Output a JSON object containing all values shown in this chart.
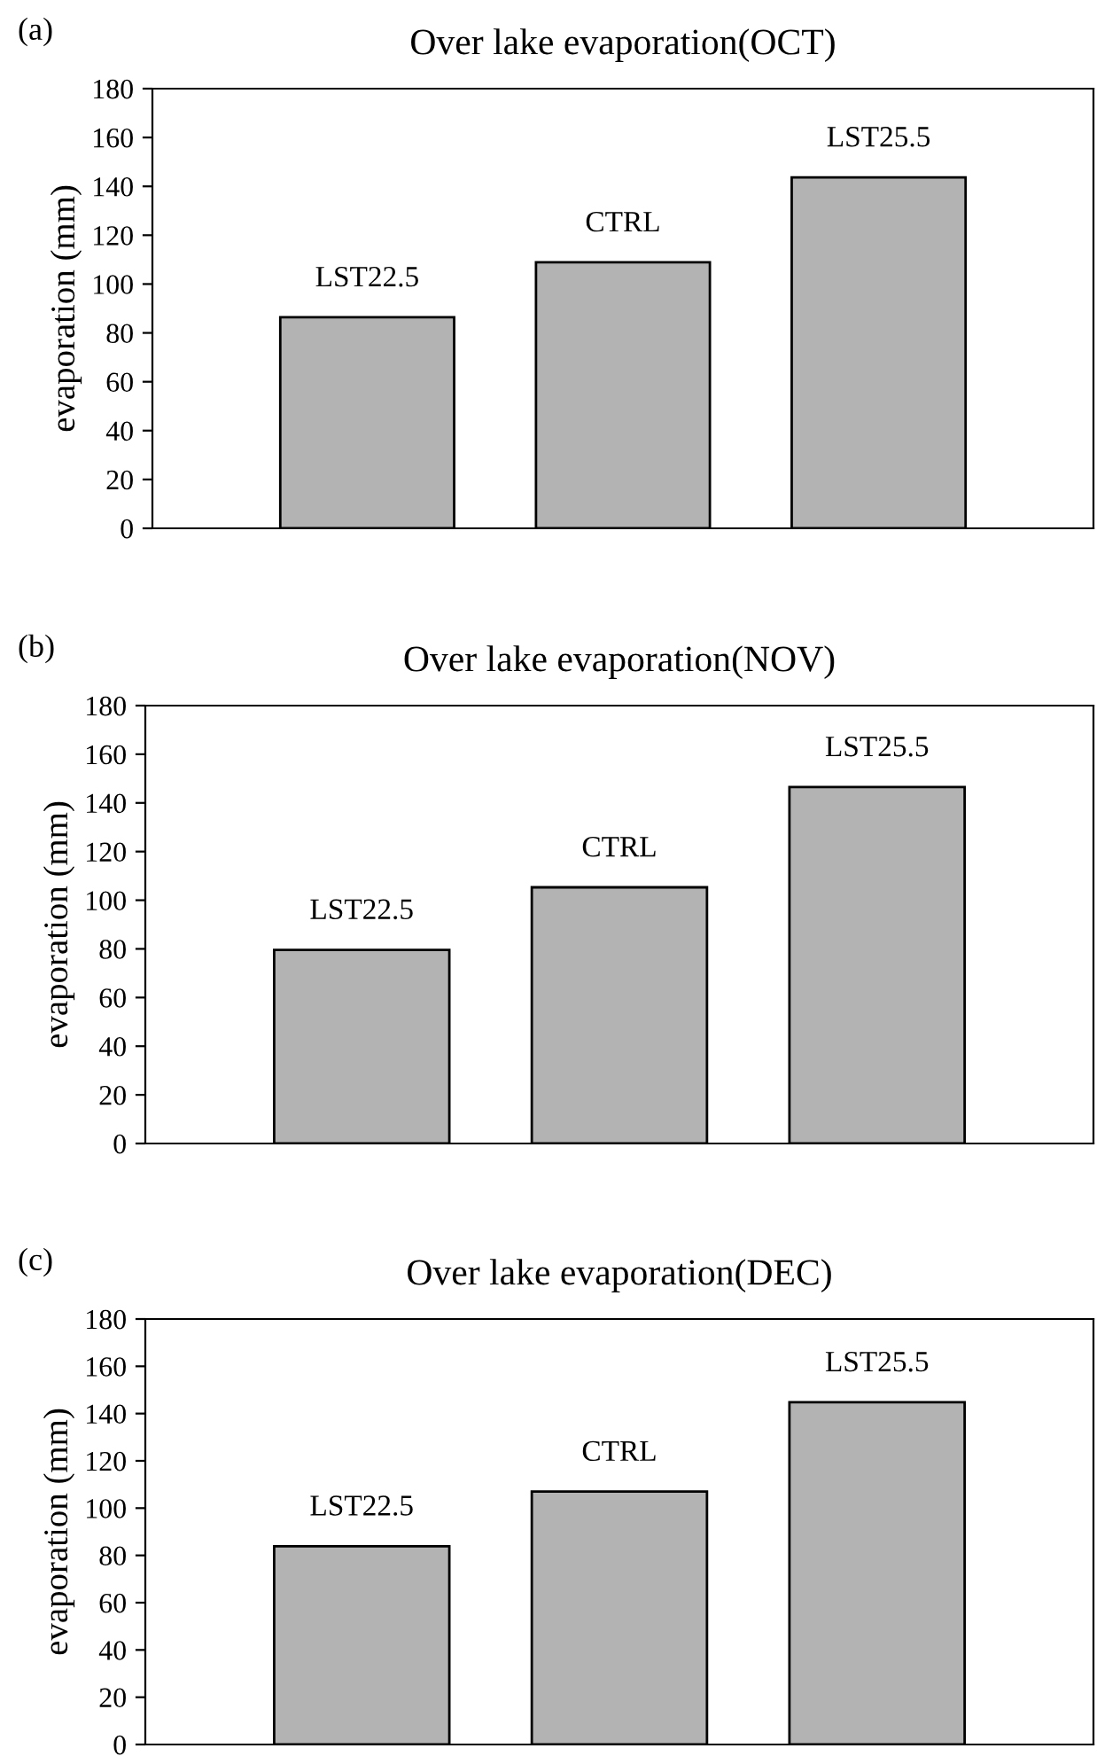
{
  "chart_data": [
    {
      "type": "bar",
      "title": "Over lake evaporation(OCT)",
      "ylabel": "evaporation (mm)",
      "annotations": [
        "(a)"
      ],
      "categories": [
        "LST22.5",
        "CTRL",
        "LST25.5"
      ],
      "values": [
        86.4,
        108.9,
        143.7
      ],
      "color": "#b3b3b3",
      "ylim": [
        0,
        180
      ],
      "yticks": [
        0,
        20,
        40,
        60,
        80,
        100,
        120,
        140,
        160,
        180
      ],
      "grid": false,
      "legend": false
    },
    {
      "type": "bar",
      "title": "Over lake evaporation(NOV)",
      "ylabel": "evaporation (mm)",
      "annotations": [
        "(b)"
      ],
      "categories": [
        "LST22.5",
        "CTRL",
        "LST25.5"
      ],
      "values": [
        79.6,
        105.3,
        146.5
      ],
      "color": "#b3b3b3",
      "ylim": [
        0,
        180
      ],
      "yticks": [
        0,
        20,
        40,
        60,
        80,
        100,
        120,
        140,
        160,
        180
      ],
      "grid": false,
      "legend": false
    },
    {
      "type": "bar",
      "title": "Over lake evaporation(DEC)",
      "ylabel": "evaporation (mm)",
      "annotations": [
        "(c)"
      ],
      "categories": [
        "LST22.5",
        "CTRL",
        "LST25.5"
      ],
      "values": [
        83.9,
        107.0,
        144.8
      ],
      "color": "#b3b3b3",
      "ylim": [
        0,
        180
      ],
      "yticks": [
        0,
        20,
        40,
        60,
        80,
        100,
        120,
        140,
        160,
        180
      ],
      "grid": false,
      "legend": false
    }
  ]
}
